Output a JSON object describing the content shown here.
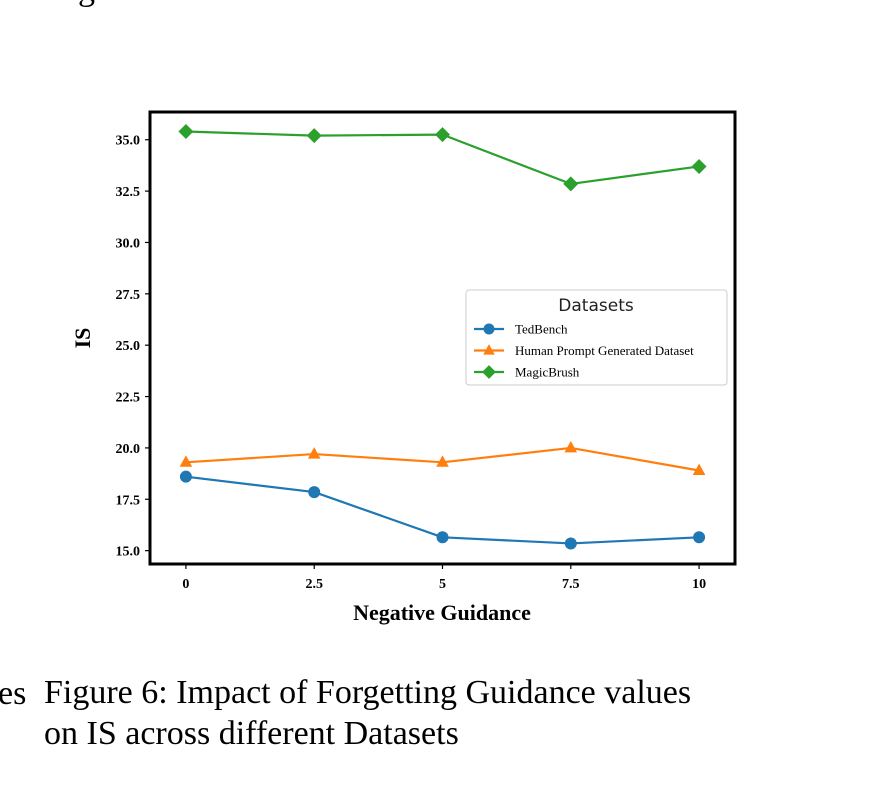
{
  "fragments": {
    "top": "g",
    "left": "es"
  },
  "caption": {
    "line1": "Figure 6: Impact of Forgetting Guidance values",
    "line2": "on IS across different Datasets"
  },
  "chart_data": {
    "type": "line",
    "xlabel": "Negative Guidance",
    "ylabel": "IS",
    "xlim": [
      -0.7,
      10.7
    ],
    "ylim": [
      14.35,
      36.35
    ],
    "x_ticks": [
      0,
      2.5,
      5,
      7.5,
      10
    ],
    "x_tick_labels": [
      "0",
      "2.5",
      "5",
      "7.5",
      "10"
    ],
    "y_ticks": [
      15.0,
      17.5,
      20.0,
      22.5,
      25.0,
      27.5,
      30.0,
      32.5,
      35.0
    ],
    "y_tick_labels": [
      "15.0",
      "17.5",
      "20.0",
      "22.5",
      "25.0",
      "27.5",
      "30.0",
      "32.5",
      "35.0"
    ],
    "x": [
      0,
      2.5,
      5,
      7.5,
      10
    ],
    "grid": false,
    "legend": {
      "title": "Datasets",
      "placement": "center-right"
    },
    "series": [
      {
        "name": "TedBench",
        "color": "#1f77b4",
        "marker": "circle",
        "values": [
          18.6,
          17.85,
          15.65,
          15.35,
          15.65
        ]
      },
      {
        "name": "Human Prompt Generated Dataset",
        "color": "#ff7f0e",
        "marker": "triangle",
        "values": [
          19.3,
          19.7,
          19.3,
          20.0,
          18.9
        ]
      },
      {
        "name": "MagicBrush",
        "color": "#2ca02c",
        "marker": "diamond",
        "values": [
          35.4,
          35.2,
          35.25,
          32.85,
          33.7
        ]
      }
    ]
  }
}
